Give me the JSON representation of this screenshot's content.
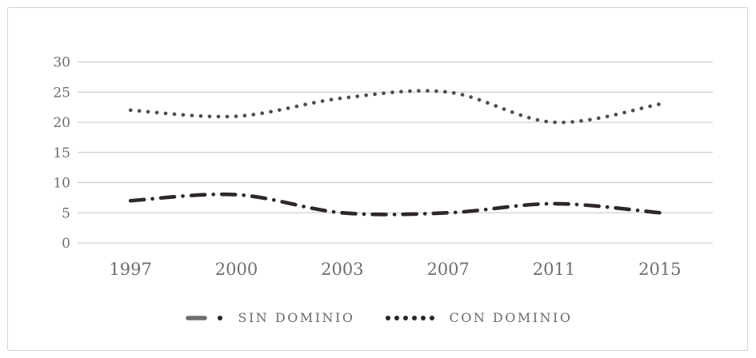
{
  "chart_data": {
    "type": "line",
    "categories": [
      "1997",
      "2000",
      "2003",
      "2007",
      "2011",
      "2015"
    ],
    "series": [
      {
        "name": "SIN DOMINIO",
        "values": [
          7,
          8,
          5,
          5,
          6.5,
          5
        ],
        "line_style": "long-dash-dot",
        "color": "#2e2826"
      },
      {
        "name": "CON DOMINIO",
        "values": [
          22,
          21,
          24,
          25,
          20,
          23
        ],
        "line_style": "round-dot",
        "color": "#4d4d4d"
      }
    ],
    "title": "",
    "xlabel": "",
    "ylabel": "",
    "ylim": [
      0,
      30
    ],
    "ytick_step": 5,
    "yticks": [
      "0",
      "5",
      "10",
      "15",
      "20",
      "25",
      "30"
    ],
    "grid": "horizontal",
    "smooth_lines": true,
    "legend_position": "bottom"
  },
  "legend": {
    "items": [
      {
        "label": "SIN DOMINIO",
        "marker": "dash-dot-sample"
      },
      {
        "label": "CON DOMINIO",
        "marker": "six-dots-sample"
      }
    ]
  },
  "colors": {
    "sin_line": "#2e2826",
    "con_line": "#4d4d4d",
    "legend_sin_dash": "#6f6f6f",
    "legend_dot": "#262626",
    "axis_text": "#6e6e6e",
    "legend_text": "#6b6b6b",
    "grid": "#c3c3c3",
    "frame_border": "#d4d4d4",
    "background": "#ffffff"
  }
}
